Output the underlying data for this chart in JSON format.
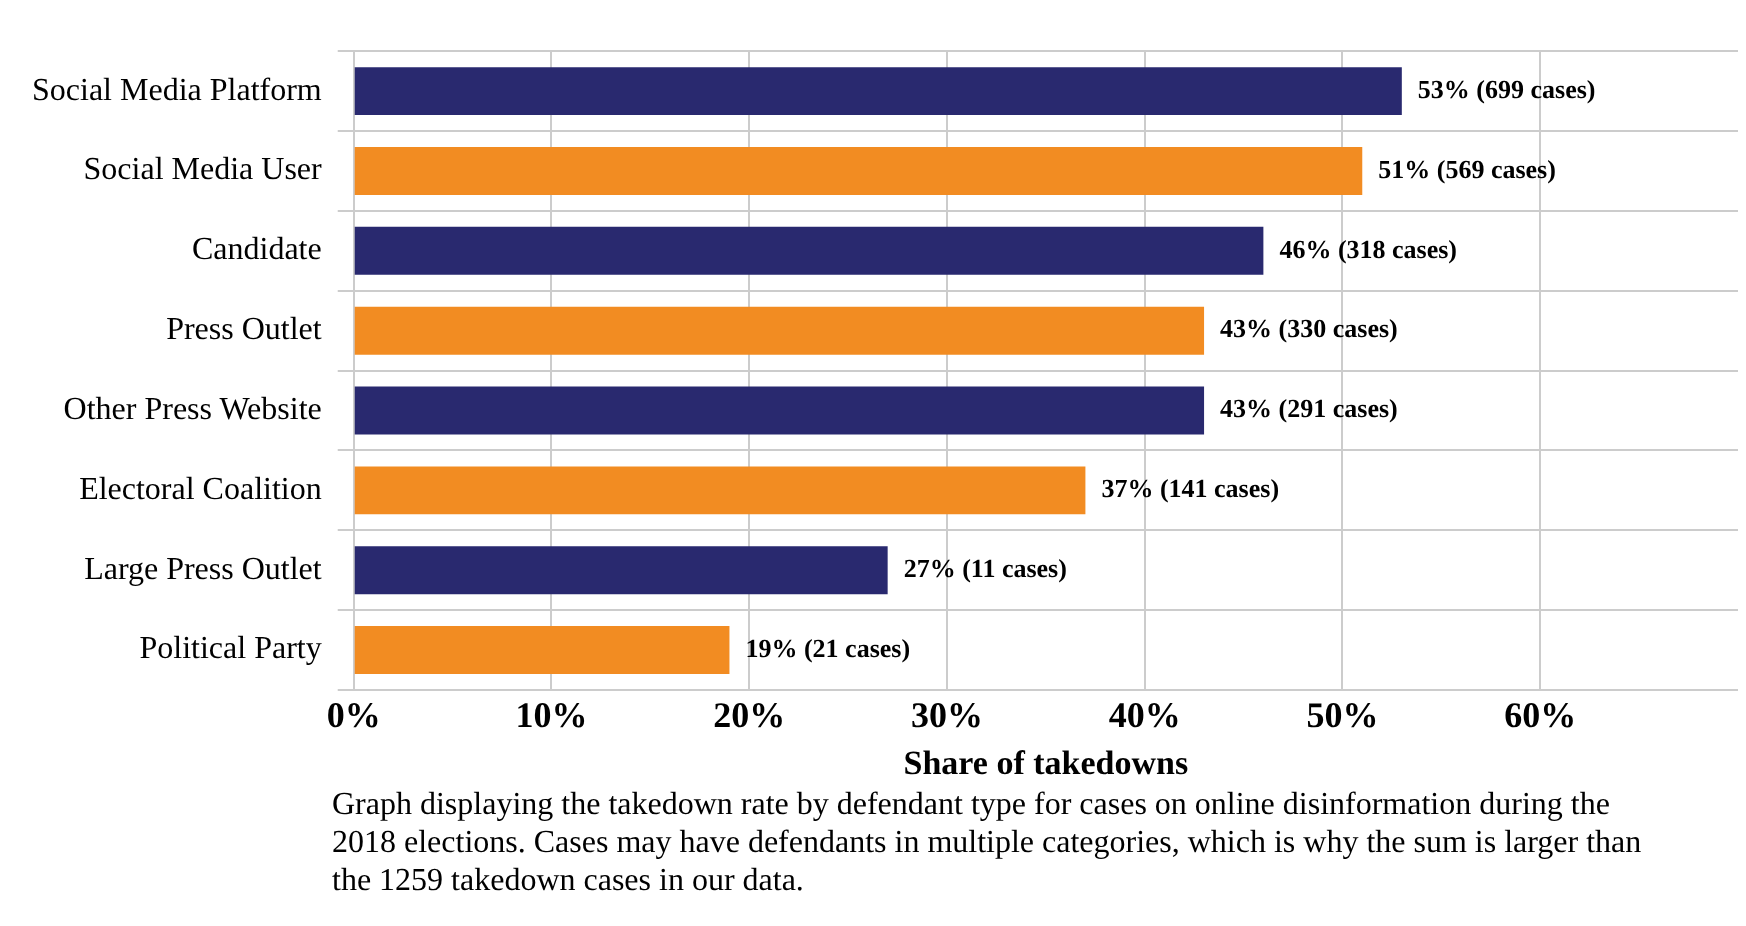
{
  "chart_data": {
    "type": "bar",
    "orientation": "horizontal",
    "categories": [
      "Social Media Platform",
      "Social Media User",
      "Candidate",
      "Press Outlet",
      "Other Press Website",
      "Electoral Coalition",
      "Large Press Outlet",
      "Political Party"
    ],
    "values": [
      53,
      51,
      46,
      43,
      43,
      37,
      27,
      19
    ],
    "colors": [
      "#29296f",
      "#f28c22",
      "#29296f",
      "#f28c22",
      "#29296f",
      "#f28c22",
      "#29296f",
      "#f28c22"
    ],
    "value_labels": [
      "53% (699 cases)",
      "51% (569 cases)",
      "46% (318 cases)",
      "43% (330 cases)",
      "43% (291 cases)",
      "37% (141 cases)",
      "27% (11 cases)",
      "19% (21 cases)"
    ],
    "xlabel": "Share of takedowns",
    "xlim": [
      0,
      70
    ],
    "xticks": [
      {
        "value": 0,
        "label": "0%"
      },
      {
        "value": 10,
        "label": "10%"
      },
      {
        "value": 20,
        "label": "20%"
      },
      {
        "value": 30,
        "label": "30%"
      },
      {
        "value": 40,
        "label": "40%"
      },
      {
        "value": 50,
        "label": "50%"
      },
      {
        "value": 60,
        "label": "60%"
      }
    ],
    "grid": true,
    "legend": false,
    "annotations": [
      "Graph displaying the takedown rate by defendant type for cases on online disinformation during the 2018 elections. Cases may have defendants in multiple categories, which is why the sum is larger than the 1259 takedown cases in our data."
    ]
  }
}
